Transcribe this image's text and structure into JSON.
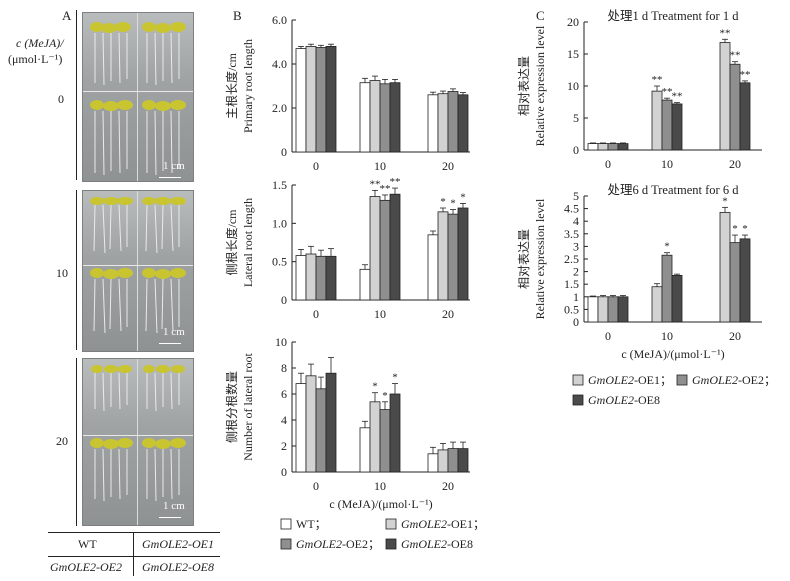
{
  "panel_labels": {
    "a": "A",
    "b": "B",
    "c": "C"
  },
  "panel_a": {
    "ylabel_line1": "c (MeJA)/",
    "ylabel_line2": "(μmol·L⁻¹)",
    "conc_labels": [
      "0",
      "10",
      "20"
    ],
    "scale_label": "1 cm",
    "table": {
      "r1c1": "WT",
      "r1c2": "GmOLE2-OE1",
      "r2c1": "GmOLE2-OE2",
      "r2c2": "GmOLE2-OE8"
    }
  },
  "colors": {
    "wt": "#ffffff",
    "oe1": "#d2d2d2",
    "oe2": "#8f8f8f",
    "oe8": "#4a4a4a",
    "plant": "#c9c531"
  },
  "legend_b": [
    "WT；",
    "GmOLE2-OE1；",
    "GmOLE2-OE2；",
    "GmOLE2-OE8"
  ],
  "legend_c": [
    "GmOLE2-OE1；",
    "GmOLE2-OE2；",
    "GmOLE2-OE8"
  ],
  "chart_data": [
    {
      "id": "b1",
      "type": "bar",
      "categories": [
        "0",
        "10",
        "20"
      ],
      "ylabel_cn": "主根长度/cm",
      "ylabel_en": "Primary root length",
      "ylim": [
        0,
        6
      ],
      "yticks": [
        "0",
        "2.0",
        "4.0",
        "6.0"
      ],
      "tick_values": [
        0,
        2,
        4,
        6
      ],
      "xlabel": "",
      "series": [
        {
          "name": "WT",
          "values": [
            4.7,
            3.15,
            2.6
          ],
          "err": [
            0.1,
            0.2,
            0.12
          ],
          "sig": [
            "",
            "",
            ""
          ]
        },
        {
          "name": "GmOLE2-OE1",
          "values": [
            4.8,
            3.25,
            2.65
          ],
          "err": [
            0.1,
            0.2,
            0.12
          ],
          "sig": [
            "",
            "",
            ""
          ]
        },
        {
          "name": "GmOLE2-OE2",
          "values": [
            4.75,
            3.1,
            2.75
          ],
          "err": [
            0.1,
            0.2,
            0.12
          ],
          "sig": [
            "",
            "",
            ""
          ]
        },
        {
          "name": "GmOLE2-OE8",
          "values": [
            4.8,
            3.15,
            2.6
          ],
          "err": [
            0.1,
            0.15,
            0.1
          ],
          "sig": [
            "",
            "",
            ""
          ]
        }
      ]
    },
    {
      "id": "b2",
      "type": "bar",
      "categories": [
        "0",
        "10",
        "20"
      ],
      "ylabel_cn": "侧根长度/cm",
      "ylabel_en": "Lateral root length",
      "ylim": [
        0,
        1.5
      ],
      "yticks": [
        "0",
        "0.5",
        "1.0",
        "1.5"
      ],
      "tick_values": [
        0,
        0.5,
        1.0,
        1.5
      ],
      "xlabel": "",
      "series": [
        {
          "name": "WT",
          "values": [
            0.58,
            0.4,
            0.85
          ],
          "err": [
            0.08,
            0.06,
            0.05
          ],
          "sig": [
            "",
            "",
            ""
          ]
        },
        {
          "name": "GmOLE2-OE1",
          "values": [
            0.6,
            1.35,
            1.15
          ],
          "err": [
            0.1,
            0.08,
            0.05
          ],
          "sig": [
            "",
            "**",
            "*"
          ]
        },
        {
          "name": "GmOLE2-OE2",
          "values": [
            0.57,
            1.3,
            1.12
          ],
          "err": [
            0.08,
            0.07,
            0.06
          ],
          "sig": [
            "",
            "**",
            "*"
          ]
        },
        {
          "name": "GmOLE2-OE8",
          "values": [
            0.57,
            1.38,
            1.2
          ],
          "err": [
            0.1,
            0.08,
            0.06
          ],
          "sig": [
            "",
            "**",
            "*"
          ]
        }
      ]
    },
    {
      "id": "b3",
      "type": "bar",
      "categories": [
        "0",
        "10",
        "20"
      ],
      "ylabel_cn": "侧根分根数量",
      "ylabel_en": "Number of lateral root",
      "ylim": [
        0,
        10
      ],
      "yticks": [
        "0",
        "2",
        "4",
        "6",
        "8",
        "10"
      ],
      "tick_values": [
        0,
        2,
        4,
        6,
        8,
        10
      ],
      "xlabel": "c (MeJA)/(μmol·L⁻¹)",
      "series": [
        {
          "name": "WT",
          "values": [
            6.8,
            3.4,
            1.4
          ],
          "err": [
            0.8,
            0.5,
            0.5
          ],
          "sig": [
            "",
            "",
            ""
          ]
        },
        {
          "name": "GmOLE2-OE1",
          "values": [
            7.4,
            5.4,
            1.7
          ],
          "err": [
            0.9,
            0.7,
            0.5
          ],
          "sig": [
            "",
            "*",
            ""
          ]
        },
        {
          "name": "GmOLE2-OE2",
          "values": [
            6.4,
            4.8,
            1.8
          ],
          "err": [
            0.9,
            0.6,
            0.5
          ],
          "sig": [
            "",
            "*",
            ""
          ]
        },
        {
          "name": "GmOLE2-OE8",
          "values": [
            7.6,
            6.0,
            1.8
          ],
          "err": [
            1.2,
            0.8,
            0.5
          ],
          "sig": [
            "",
            "*",
            ""
          ]
        }
      ]
    },
    {
      "id": "c1",
      "type": "bar",
      "title": "处理1 d  Treatment for 1 d",
      "categories": [
        "0",
        "10",
        "20"
      ],
      "ylabel_cn": "相对表达量",
      "ylabel_en": "Relative expression level",
      "ylim": [
        0,
        20
      ],
      "yticks": [
        "0",
        "5",
        "10",
        "15",
        "20"
      ],
      "tick_values": [
        0,
        5,
        10,
        15,
        20
      ],
      "xlabel": "",
      "series": [
        {
          "name": "WT",
          "values": [
            1.0,
            0,
            0
          ],
          "err": [
            0.1,
            0,
            0
          ],
          "sig": [
            "",
            "",
            ""
          ]
        },
        {
          "name": "GmOLE2-OE1",
          "values": [
            1.0,
            9.2,
            16.8
          ],
          "err": [
            0.1,
            0.8,
            0.5
          ],
          "sig": [
            "",
            "**",
            "**"
          ]
        },
        {
          "name": "GmOLE2-OE2",
          "values": [
            1.0,
            7.8,
            13.4
          ],
          "err": [
            0.1,
            0.3,
            0.4
          ],
          "sig": [
            "",
            "**",
            "**"
          ]
        },
        {
          "name": "GmOLE2-OE8",
          "values": [
            1.0,
            7.2,
            10.5
          ],
          "err": [
            0.1,
            0.2,
            0.3
          ],
          "sig": [
            "",
            "**",
            "**"
          ]
        }
      ]
    },
    {
      "id": "c2",
      "type": "bar",
      "title": "处理6 d  Treatment for 6 d",
      "categories": [
        "0",
        "10",
        "20"
      ],
      "ylabel_cn": "相对表达量",
      "ylabel_en": "Relative expression level",
      "ylim": [
        0,
        5
      ],
      "yticks": [
        "0",
        "0.5",
        "1",
        "1.5",
        "2",
        "2.5",
        "3",
        "3.5",
        "4",
        "4.5",
        "5"
      ],
      "tick_values": [
        0,
        0.5,
        1,
        1.5,
        2,
        2.5,
        3,
        3.5,
        4,
        4.5,
        5
      ],
      "xlabel": "c (MeJA)/(μmol·L⁻¹)",
      "series": [
        {
          "name": "WT",
          "values": [
            1.0,
            0,
            0
          ],
          "err": [
            0.03,
            0,
            0
          ],
          "sig": [
            "",
            "",
            ""
          ]
        },
        {
          "name": "GmOLE2-OE1",
          "values": [
            1.0,
            1.4,
            4.35
          ],
          "err": [
            0.05,
            0.12,
            0.2
          ],
          "sig": [
            "",
            "",
            "*"
          ]
        },
        {
          "name": "GmOLE2-OE2",
          "values": [
            1.0,
            2.65,
            3.15
          ],
          "err": [
            0.05,
            0.1,
            0.3
          ],
          "sig": [
            "",
            "*",
            "*"
          ]
        },
        {
          "name": "GmOLE2-OE8",
          "values": [
            1.0,
            1.85,
            3.3
          ],
          "err": [
            0.05,
            0.05,
            0.15
          ],
          "sig": [
            "",
            "",
            "*"
          ]
        }
      ]
    }
  ]
}
